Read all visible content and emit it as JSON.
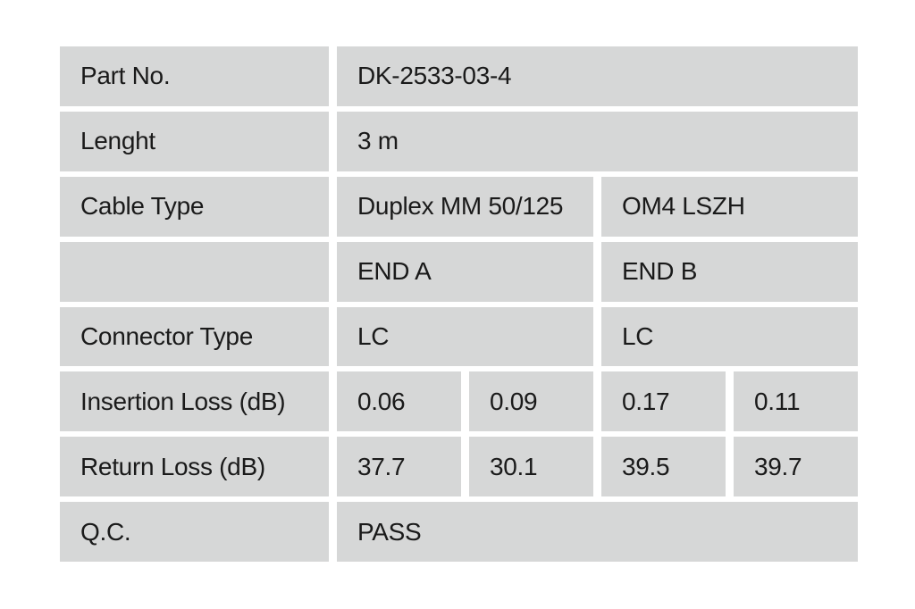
{
  "page": {
    "background": "#ffffff"
  },
  "table": {
    "cell_color": "#d6d7d7",
    "text_color": "#1a1a1a",
    "rows": [
      {
        "label": "Part No.",
        "cells": [
          {
            "text": "DK-2533-03-4",
            "span": 4
          }
        ]
      },
      {
        "label": "Lenght",
        "cells": [
          {
            "text": "3 m",
            "span": 4
          }
        ]
      },
      {
        "label": "Cable Type",
        "cells": [
          {
            "text": "Duplex MM 50/125",
            "span": 2
          },
          {
            "text": "OM4 LSZH",
            "span": 2
          }
        ]
      },
      {
        "label": "",
        "cells": [
          {
            "text": "END A",
            "span": 2
          },
          {
            "text": "END B",
            "span": 2
          }
        ]
      },
      {
        "label": "Connector Type",
        "cells": [
          {
            "text": "LC",
            "span": 2
          },
          {
            "text": "LC",
            "span": 2
          }
        ]
      },
      {
        "label": "Insertion Loss (dB)",
        "cells": [
          {
            "text": "0.06",
            "span": 1
          },
          {
            "text": "0.09",
            "span": 1
          },
          {
            "text": "0.17",
            "span": 1
          },
          {
            "text": "0.11",
            "span": 1
          }
        ]
      },
      {
        "label": "Return Loss (dB)",
        "cells": [
          {
            "text": "37.7",
            "span": 1
          },
          {
            "text": "30.1",
            "span": 1
          },
          {
            "text": "39.5",
            "span": 1
          },
          {
            "text": "39.7",
            "span": 1
          }
        ]
      },
      {
        "label": "Q.C.",
        "cells": [
          {
            "text": "PASS",
            "span": 4
          }
        ]
      }
    ]
  }
}
